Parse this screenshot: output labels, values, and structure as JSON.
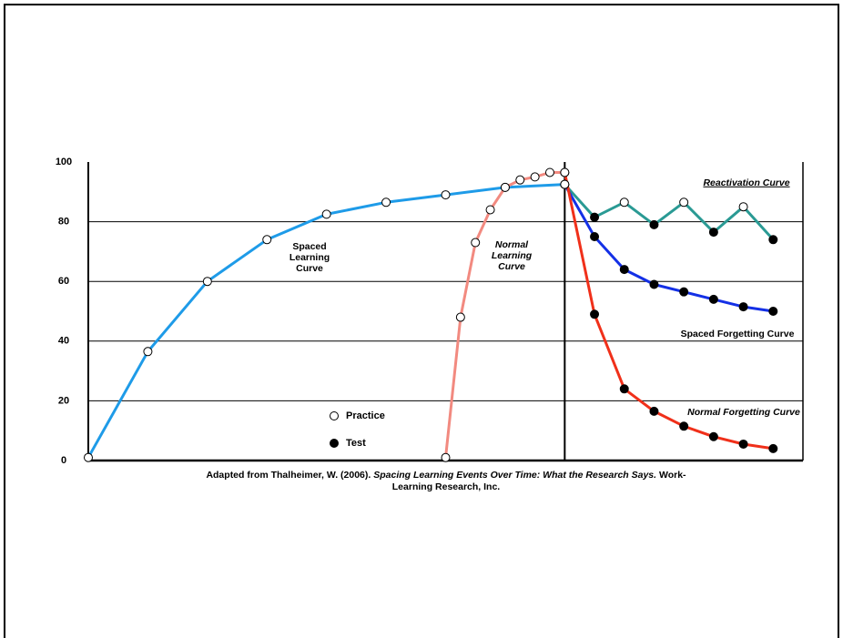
{
  "chart_data": {
    "type": "line",
    "ylim": [
      0,
      100
    ],
    "yticks": [
      0,
      20,
      40,
      60,
      80,
      100
    ],
    "xlim": [
      0,
      48
    ],
    "vlines": [
      32
    ],
    "grid": true,
    "series": [
      {
        "name": "Spaced Learning Curve",
        "color": "#1e9be8",
        "x": [
          0,
          4,
          8,
          12,
          16,
          20,
          24,
          28,
          32
        ],
        "values": [
          1,
          36.5,
          60,
          74,
          82.5,
          86.5,
          89,
          91.5,
          92.5
        ],
        "marker_fill": [
          "#ffffff",
          "#ffffff",
          "#ffffff",
          "#ffffff",
          "#ffffff",
          "#ffffff",
          "#ffffff",
          "#ffffff",
          "#ffffff"
        ]
      },
      {
        "name": "Normal Learning Curve",
        "color": "#f28a80",
        "x": [
          24,
          25,
          26,
          27,
          28,
          29,
          30,
          31,
          32
        ],
        "values": [
          1,
          48,
          73,
          84,
          91.5,
          94,
          95,
          96.5,
          96.5
        ],
        "marker_fill": [
          "#ffffff",
          "#ffffff",
          "#ffffff",
          "#ffffff",
          "#ffffff",
          "#ffffff",
          "#ffffff",
          "#ffffff",
          "#ffffff"
        ]
      },
      {
        "name": "Reactivation Curve",
        "color": "#2a9a94",
        "x": [
          32,
          34,
          36,
          38,
          40,
          42,
          44,
          46
        ],
        "values": [
          92.5,
          81.5,
          86.5,
          79,
          86.5,
          76.5,
          85,
          74
        ],
        "marker_fill": [
          "#ffffff",
          "#000000",
          "#ffffff",
          "#000000",
          "#ffffff",
          "#000000",
          "#ffffff",
          "#000000"
        ]
      },
      {
        "name": "Spaced Forgetting Curve",
        "color": "#1430e6",
        "x": [
          32,
          34,
          36,
          38,
          40,
          42,
          44,
          46
        ],
        "values": [
          92.5,
          75,
          64,
          59,
          56.5,
          54,
          51.5,
          50
        ],
        "marker_fill": [
          "#ffffff",
          "#000000",
          "#000000",
          "#000000",
          "#000000",
          "#000000",
          "#000000",
          "#000000"
        ]
      },
      {
        "name": "Normal Forgetting Curve",
        "color": "#f0301a",
        "x": [
          32,
          34,
          36,
          38,
          40,
          42,
          44,
          46
        ],
        "values": [
          96.5,
          49,
          24,
          16.5,
          11.5,
          8,
          5.5,
          4
        ],
        "marker_fill": [
          "#ffffff",
          "#000000",
          "#000000",
          "#000000",
          "#000000",
          "#000000",
          "#000000",
          "#000000"
        ]
      }
    ],
    "marker_legend": [
      {
        "label": "Practice",
        "fill": "#ffffff"
      },
      {
        "label": "Test",
        "fill": "#000000"
      }
    ],
    "caption": [
      "Adapted from Thalheimer, W. (2006).",
      "Spacing Learning Events Over Time: What the Research Says.",
      "Work-Learning Research, Inc."
    ]
  }
}
